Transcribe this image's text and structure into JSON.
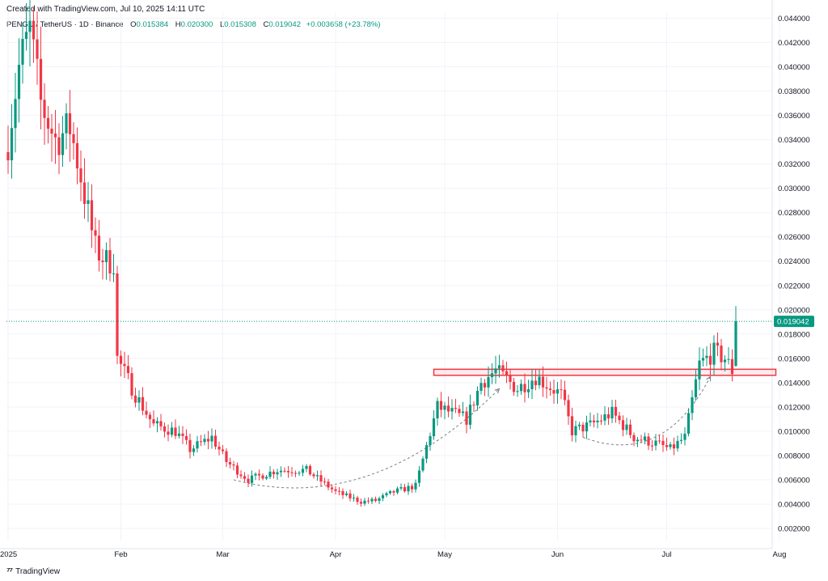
{
  "header": {
    "created": "Created with TradingView.com, Jul 10, 2025 14:11 UTC"
  },
  "legend": {
    "symbol": "PENGU / TetherUS · 1D · Binance",
    "open_label": "O",
    "open": "0.015384",
    "high_label": "H",
    "high": "0.020300",
    "low_label": "L",
    "low": "0.015308",
    "close_label": "C",
    "close": "0.019042",
    "change": "+0.003658 (+23.78%)"
  },
  "footer": {
    "brand": "TradingView",
    "logo": "tv-logo-icon"
  },
  "colors": {
    "up": "#089981",
    "down": "#f23645",
    "zone": "#f23645",
    "grid": "#f0f3fa",
    "last": "#089981"
  },
  "chart_data": {
    "type": "candlestick",
    "ylim": [
      0.001,
      0.0445
    ],
    "yticks": [
      "0.002000",
      "0.004000",
      "0.006000",
      "0.008000",
      "0.010000",
      "0.012000",
      "0.014000",
      "0.016000",
      "0.018000",
      "0.020000",
      "0.022000",
      "0.024000",
      "0.026000",
      "0.028000",
      "0.030000",
      "0.032000",
      "0.034000",
      "0.036000",
      "0.038000",
      "0.040000",
      "0.042000",
      "0.044000"
    ],
    "xticks": [
      "2025",
      "Feb",
      "Mar",
      "Apr",
      "May",
      "Jun",
      "Jul",
      "Aug"
    ],
    "last_price": "0.019042",
    "waypoints": [
      {
        "d": 0,
        "p": 0.034
      },
      {
        "d": 3,
        "p": 0.04
      },
      {
        "d": 6,
        "p": 0.043
      },
      {
        "d": 9,
        "p": 0.037
      },
      {
        "d": 13,
        "p": 0.034
      },
      {
        "d": 17,
        "p": 0.035
      },
      {
        "d": 20,
        "p": 0.031
      },
      {
        "d": 24,
        "p": 0.025
      },
      {
        "d": 27,
        "p": 0.024
      },
      {
        "d": 29,
        "p": 0.024
      },
      {
        "d": 30,
        "p": 0.016
      },
      {
        "d": 35,
        "p": 0.013
      },
      {
        "d": 40,
        "p": 0.0105
      },
      {
        "d": 46,
        "p": 0.01
      },
      {
        "d": 50,
        "p": 0.0085
      },
      {
        "d": 56,
        "p": 0.0095
      },
      {
        "d": 60,
        "p": 0.0075
      },
      {
        "d": 66,
        "p": 0.006
      },
      {
        "d": 74,
        "p": 0.0068
      },
      {
        "d": 82,
        "p": 0.0068
      },
      {
        "d": 90,
        "p": 0.005
      },
      {
        "d": 97,
        "p": 0.0042
      },
      {
        "d": 101,
        "p": 0.0043
      },
      {
        "d": 106,
        "p": 0.005
      },
      {
        "d": 112,
        "p": 0.0055
      },
      {
        "d": 118,
        "p": 0.012
      },
      {
        "d": 126,
        "p": 0.011
      },
      {
        "d": 130,
        "p": 0.014
      },
      {
        "d": 134,
        "p": 0.015
      },
      {
        "d": 140,
        "p": 0.0135
      },
      {
        "d": 145,
        "p": 0.0145
      },
      {
        "d": 152,
        "p": 0.013
      },
      {
        "d": 155,
        "p": 0.01
      },
      {
        "d": 160,
        "p": 0.0105
      },
      {
        "d": 166,
        "p": 0.0115
      },
      {
        "d": 172,
        "p": 0.0095
      },
      {
        "d": 178,
        "p": 0.009
      },
      {
        "d": 182,
        "p": 0.0085
      },
      {
        "d": 186,
        "p": 0.0095
      },
      {
        "d": 190,
        "p": 0.0155
      },
      {
        "d": 194,
        "p": 0.0165
      },
      {
        "d": 197,
        "p": 0.016
      },
      {
        "d": 199,
        "p": 0.015
      },
      {
        "d": 200,
        "p": 0.01538
      }
    ],
    "final_candle": {
      "open": 0.015384,
      "high": 0.0203,
      "low": 0.015308,
      "close": 0.019042
    },
    "resistance_zone": {
      "from_day": 117,
      "to_day": 211,
      "low": 0.0146,
      "high": 0.0151
    },
    "arcs": [
      {
        "points": [
          [
            62,
            0.006
          ],
          [
            100,
            0.003
          ],
          [
            135,
            0.0135
          ]
        ]
      },
      {
        "points": [
          [
            158,
            0.0095
          ],
          [
            180,
            0.007
          ],
          [
            193,
            0.0145
          ]
        ]
      }
    ]
  }
}
